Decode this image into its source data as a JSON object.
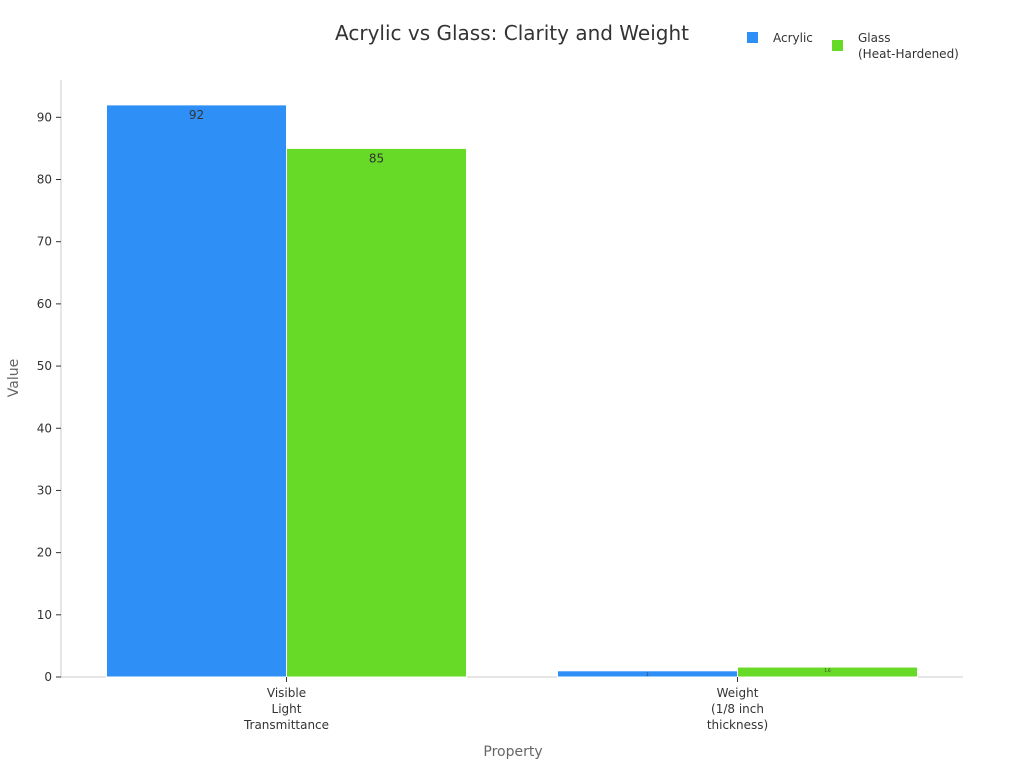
{
  "chart_data": {
    "type": "bar",
    "title": "Acrylic vs Glass: Clarity and Weight",
    "xlabel": "Property",
    "ylabel": "Value",
    "ylim": [
      0,
      96
    ],
    "yticks": [
      0,
      10,
      20,
      30,
      40,
      50,
      60,
      70,
      80,
      90
    ],
    "grid": false,
    "legend_position": "top-right",
    "categories": [
      [
        "Visible",
        "Light",
        "Transmittance"
      ],
      [
        "Weight",
        "(1/8 inch",
        "thickness)"
      ]
    ],
    "series": [
      {
        "name": [
          "Acrylic"
        ],
        "color": "#2e90f7",
        "values": [
          92,
          1
        ],
        "labels": [
          "92",
          "1"
        ]
      },
      {
        "name": [
          "Glass",
          "(Heat-Hardened)"
        ],
        "color": "#66da26",
        "values": [
          85,
          1.6
        ],
        "labels": [
          "85",
          "1.6"
        ]
      }
    ]
  }
}
